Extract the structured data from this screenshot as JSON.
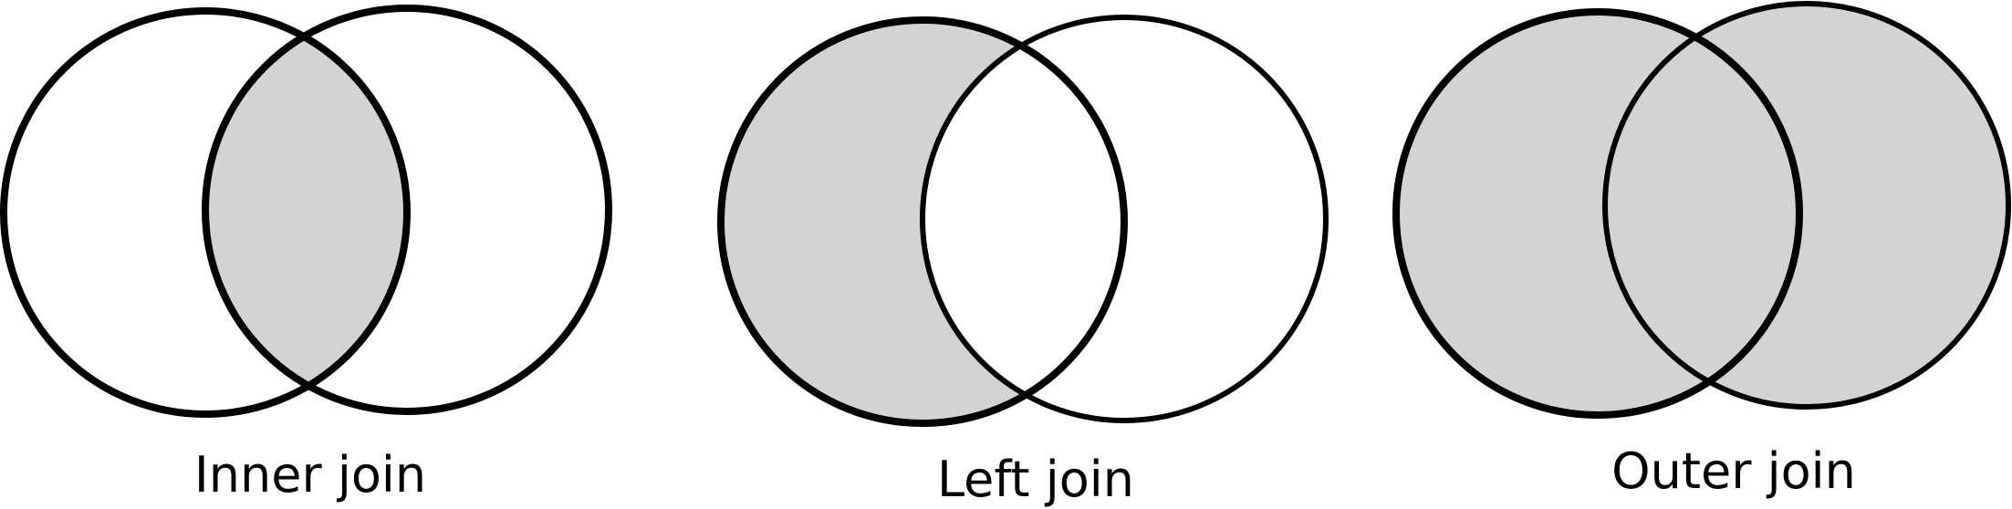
{
  "diagrams": [
    {
      "label": "Inner join",
      "shade": "intersection"
    },
    {
      "label": "Left join",
      "shade": "left"
    },
    {
      "label": "Outer join",
      "shade": "union"
    }
  ],
  "colors": {
    "fill": "#d3d3d3",
    "stroke": "#000000",
    "background": "#ffffff"
  }
}
